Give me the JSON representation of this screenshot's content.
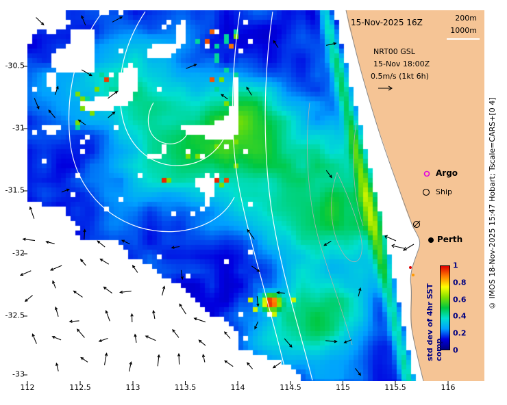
{
  "header": {
    "datetime_label": "15-Nov-2025 16Z",
    "contour_labels": [
      "200m",
      "1000m"
    ]
  },
  "forecast": {
    "model": "NRT00 GSL",
    "valid_time": "15-Nov 18:00Z",
    "vector_scale": "0.5m/s (1kt 6h)"
  },
  "legend": {
    "argo": "Argo",
    "ship": "Ship"
  },
  "city": {
    "perth": "Perth"
  },
  "colorbar": {
    "label": "std dev of 4hr SST comp",
    "ticks": [
      "1",
      "0.8",
      "0.6",
      "0.4",
      "0.2",
      "0"
    ],
    "min": 0,
    "max": 1,
    "stops": [
      {
        "t": 0.0,
        "c": "#000080"
      },
      {
        "t": 0.125,
        "c": "#0000e0"
      },
      {
        "t": 0.25,
        "c": "#00a0ff"
      },
      {
        "t": 0.375,
        "c": "#00e0d0"
      },
      {
        "t": 0.5,
        "c": "#00c840"
      },
      {
        "t": 0.625,
        "c": "#80e000"
      },
      {
        "t": 0.75,
        "c": "#ffff00"
      },
      {
        "t": 0.875,
        "c": "#ff8000"
      },
      {
        "t": 1.0,
        "c": "#e00000"
      }
    ]
  },
  "axes": {
    "x_ticks": [
      "112",
      "112.5",
      "113",
      "113.5",
      "114",
      "114.5",
      "115",
      "115.5",
      "116"
    ],
    "y_ticks": [
      "-30.5",
      "-31",
      "-31.5",
      "-32",
      "-32.5",
      "-33"
    ]
  },
  "copyright": "© IMOS 18-Nov-2025 15:47 Hobart; Tscale=CARS+[0 4]",
  "colors": {
    "land": "#f5c495",
    "vector": "#000000",
    "argo": "#e000e0",
    "contour_white": "#ffffff",
    "contour_grey": "#b0b0b0"
  },
  "chart_data": {
    "type": "heatmap",
    "title": "std dev of 4hr SST comp",
    "x_range": [
      112,
      116.33
    ],
    "y_range": [
      -33.05,
      -30.05
    ],
    "x_ticks": [
      112,
      112.5,
      113,
      113.5,
      114,
      114.5,
      115,
      115.5,
      116
    ],
    "y_ticks": [
      -30.5,
      -31,
      -31.5,
      -32,
      -32.5,
      -33
    ],
    "colorbar": {
      "label": "std dev of 4hr SST comp",
      "range": [
        0,
        1
      ],
      "tick_values": [
        0,
        0.2,
        0.4,
        0.6,
        0.8,
        1
      ]
    },
    "overlays": [
      "bathymetry contours 200m and 1000m (white lines)",
      "surface current vectors, scale 0.5m/s (1kt 6h)",
      "Argo (magenta circle) and Ship (black circle) observation markers",
      "Perth city marker (black dot)"
    ],
    "notes": "Pixelated satellite SST standard-deviation field off Western Australia; dark navy = low std dev, cyan/green/yellow/red = higher; white = no data; tan = land; diagonal swath edge of lighter blue along the coastal data boundary."
  }
}
